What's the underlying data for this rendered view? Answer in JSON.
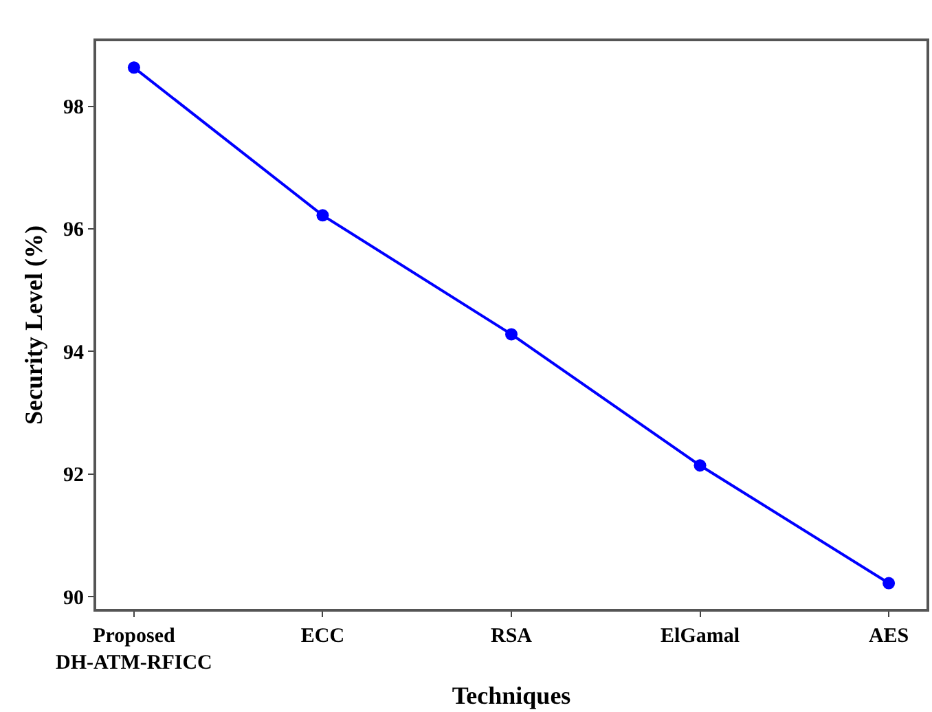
{
  "chart_data": {
    "type": "line",
    "xlabel": "Techniques",
    "ylabel": "Security Level (%)",
    "categories": [
      "Proposed\nDH-ATM-RFICC",
      "ECC",
      "RSA",
      "ElGamal",
      "AES"
    ],
    "series": [
      {
        "color": "#0000ff",
        "values": [
          98.63,
          96.22,
          94.28,
          92.14,
          90.22
        ]
      }
    ],
    "ylim": [
      89.8,
      99.06
    ],
    "yticks": [
      90,
      92,
      94,
      96,
      98
    ],
    "marker": "circle",
    "line_style": "solid"
  }
}
